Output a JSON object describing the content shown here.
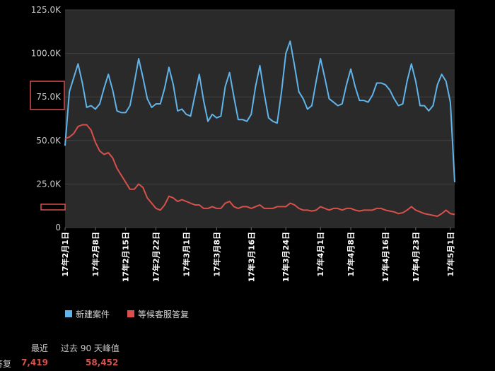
{
  "colors": {
    "background": "#000000",
    "plot_background": "#2a2a2b",
    "series_new": "#61b4ea",
    "series_waiting": "#d9504a",
    "stat_value": "#d9504a"
  },
  "chart_data": {
    "type": "line",
    "title": "",
    "xlabel": "",
    "ylabel": "",
    "ylim": [
      0,
      125000
    ],
    "y_ticks": [
      {
        "value": 0,
        "label": "0"
      },
      {
        "value": 25000,
        "label": "25.0K"
      },
      {
        "value": 50000,
        "label": "50.0K"
      },
      {
        "value": 75000,
        "label": "75.0K"
      },
      {
        "value": 100000,
        "label": "100.0K"
      },
      {
        "value": 125000,
        "label": "125.0K"
      }
    ],
    "x_start_date": "2017-02-01",
    "x_tick_labels": [
      {
        "day": 0,
        "label": "17年2月1日"
      },
      {
        "day": 7,
        "label": "17年2月8日"
      },
      {
        "day": 14,
        "label": "17年2月15日"
      },
      {
        "day": 21,
        "label": "17年2月22日"
      },
      {
        "day": 28,
        "label": "17年3月1日"
      },
      {
        "day": 35,
        "label": "17年3月8日"
      },
      {
        "day": 43,
        "label": "17年3月16日"
      },
      {
        "day": 51,
        "label": "17年3月24日"
      },
      {
        "day": 59,
        "label": "17年4月1日"
      },
      {
        "day": 66,
        "label": "17年4月8日"
      },
      {
        "day": 74,
        "label": "17年4月16日"
      },
      {
        "day": 81,
        "label": "17年4月23日"
      },
      {
        "day": 89,
        "label": "17年5月1日"
      }
    ],
    "series": [
      {
        "name": "新建案件",
        "color": "#61b4ea",
        "values": [
          47000,
          78000,
          86000,
          94000,
          83000,
          69000,
          70000,
          68000,
          71000,
          80000,
          88000,
          79000,
          67000,
          66000,
          66000,
          70000,
          83000,
          97000,
          86000,
          74000,
          69000,
          71000,
          71000,
          80000,
          92000,
          82000,
          67000,
          68000,
          65000,
          64000,
          76000,
          88000,
          73000,
          61000,
          65000,
          63000,
          64000,
          81000,
          89000,
          75000,
          62000,
          62000,
          61000,
          65000,
          81000,
          93000,
          77000,
          63000,
          61000,
          60000,
          78000,
          100000,
          107000,
          93000,
          78000,
          74000,
          68000,
          70000,
          84000,
          97000,
          86000,
          74000,
          72000,
          70000,
          71000,
          82000,
          91000,
          81000,
          73000,
          73000,
          72000,
          76000,
          83000,
          83000,
          82000,
          79000,
          74000,
          70000,
          71000,
          84000,
          94000,
          84000,
          70000,
          70000,
          67000,
          70000,
          82000,
          88000,
          84000,
          72000,
          26000
        ]
      },
      {
        "name": "等候客服答复",
        "color": "#d9504a",
        "values": [
          51000,
          52000,
          54000,
          58000,
          59000,
          59000,
          56000,
          49000,
          44000,
          42000,
          43000,
          40000,
          34000,
          30000,
          26000,
          22000,
          22000,
          25000,
          23000,
          17000,
          14000,
          11000,
          10000,
          13000,
          18000,
          17000,
          15000,
          16000,
          15000,
          14000,
          13000,
          13000,
          11000,
          11000,
          12000,
          11000,
          11000,
          14000,
          15000,
          12000,
          11000,
          12000,
          12000,
          11000,
          12000,
          13000,
          11000,
          11000,
          11000,
          12000,
          12000,
          12000,
          14000,
          13000,
          11000,
          10000,
          10000,
          9500,
          10000,
          12000,
          11000,
          10000,
          11000,
          11000,
          10000,
          11000,
          11000,
          10000,
          9500,
          10000,
          10000,
          10000,
          11000,
          11000,
          10000,
          9500,
          9000,
          8000,
          8500,
          10000,
          12000,
          10000,
          9000,
          8000,
          7500,
          7000,
          6500,
          8000,
          10000,
          8000,
          7500
        ]
      }
    ],
    "legend": [
      {
        "label": "新建案件",
        "color": "#61b4ea"
      },
      {
        "label": "等候客服答复",
        "color": "#d9504a"
      }
    ],
    "legend_position": "bottom-left",
    "grid": true
  },
  "stats": {
    "col_recent": "最近",
    "col_peak": "过去 90 天峰值",
    "row_label": "答复",
    "recent_value": "7,419",
    "peak_value": "58,452"
  }
}
